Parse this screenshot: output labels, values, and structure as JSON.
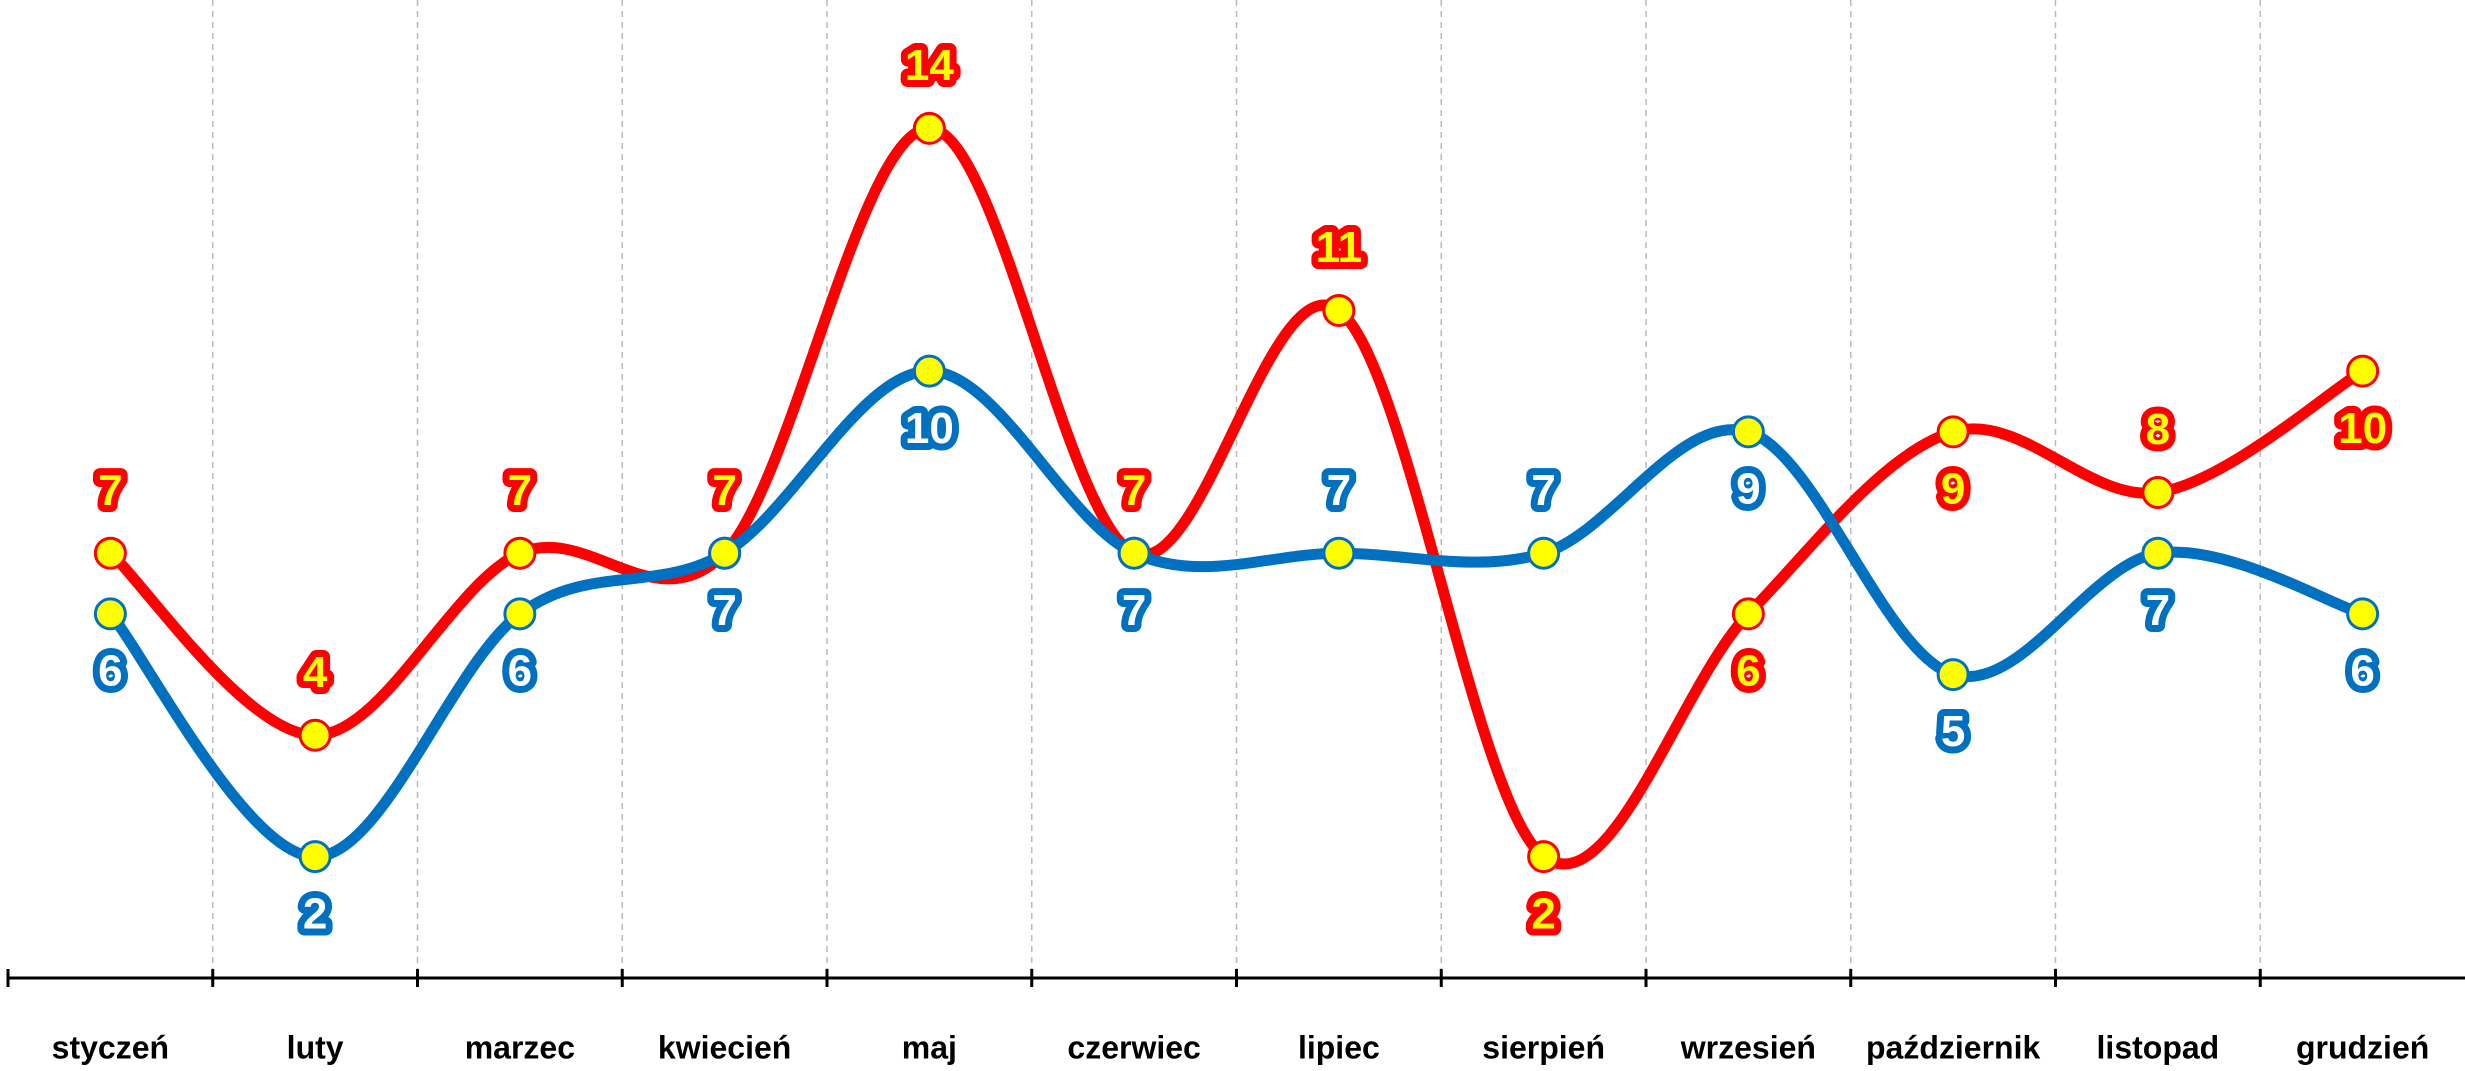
{
  "chart_data": {
    "type": "line",
    "categories": [
      "styczeń",
      "luty",
      "marzec",
      "kwiecień",
      "maj",
      "czerwiec",
      "lipiec",
      "sierpień",
      "wrzesień",
      "październik",
      "listopad",
      "grudzień"
    ],
    "series": [
      {
        "color": "#ff0000",
        "values": [
          7,
          4,
          7,
          7,
          14,
          7,
          11,
          2,
          6,
          9,
          8,
          10
        ]
      },
      {
        "color": "#0070c0",
        "values": [
          6,
          2,
          6,
          7,
          10,
          7,
          7,
          7,
          9,
          5,
          7,
          6
        ]
      }
    ],
    "ylim": [
      0,
      16
    ],
    "grid": true,
    "marker_color": "#ffff00"
  }
}
